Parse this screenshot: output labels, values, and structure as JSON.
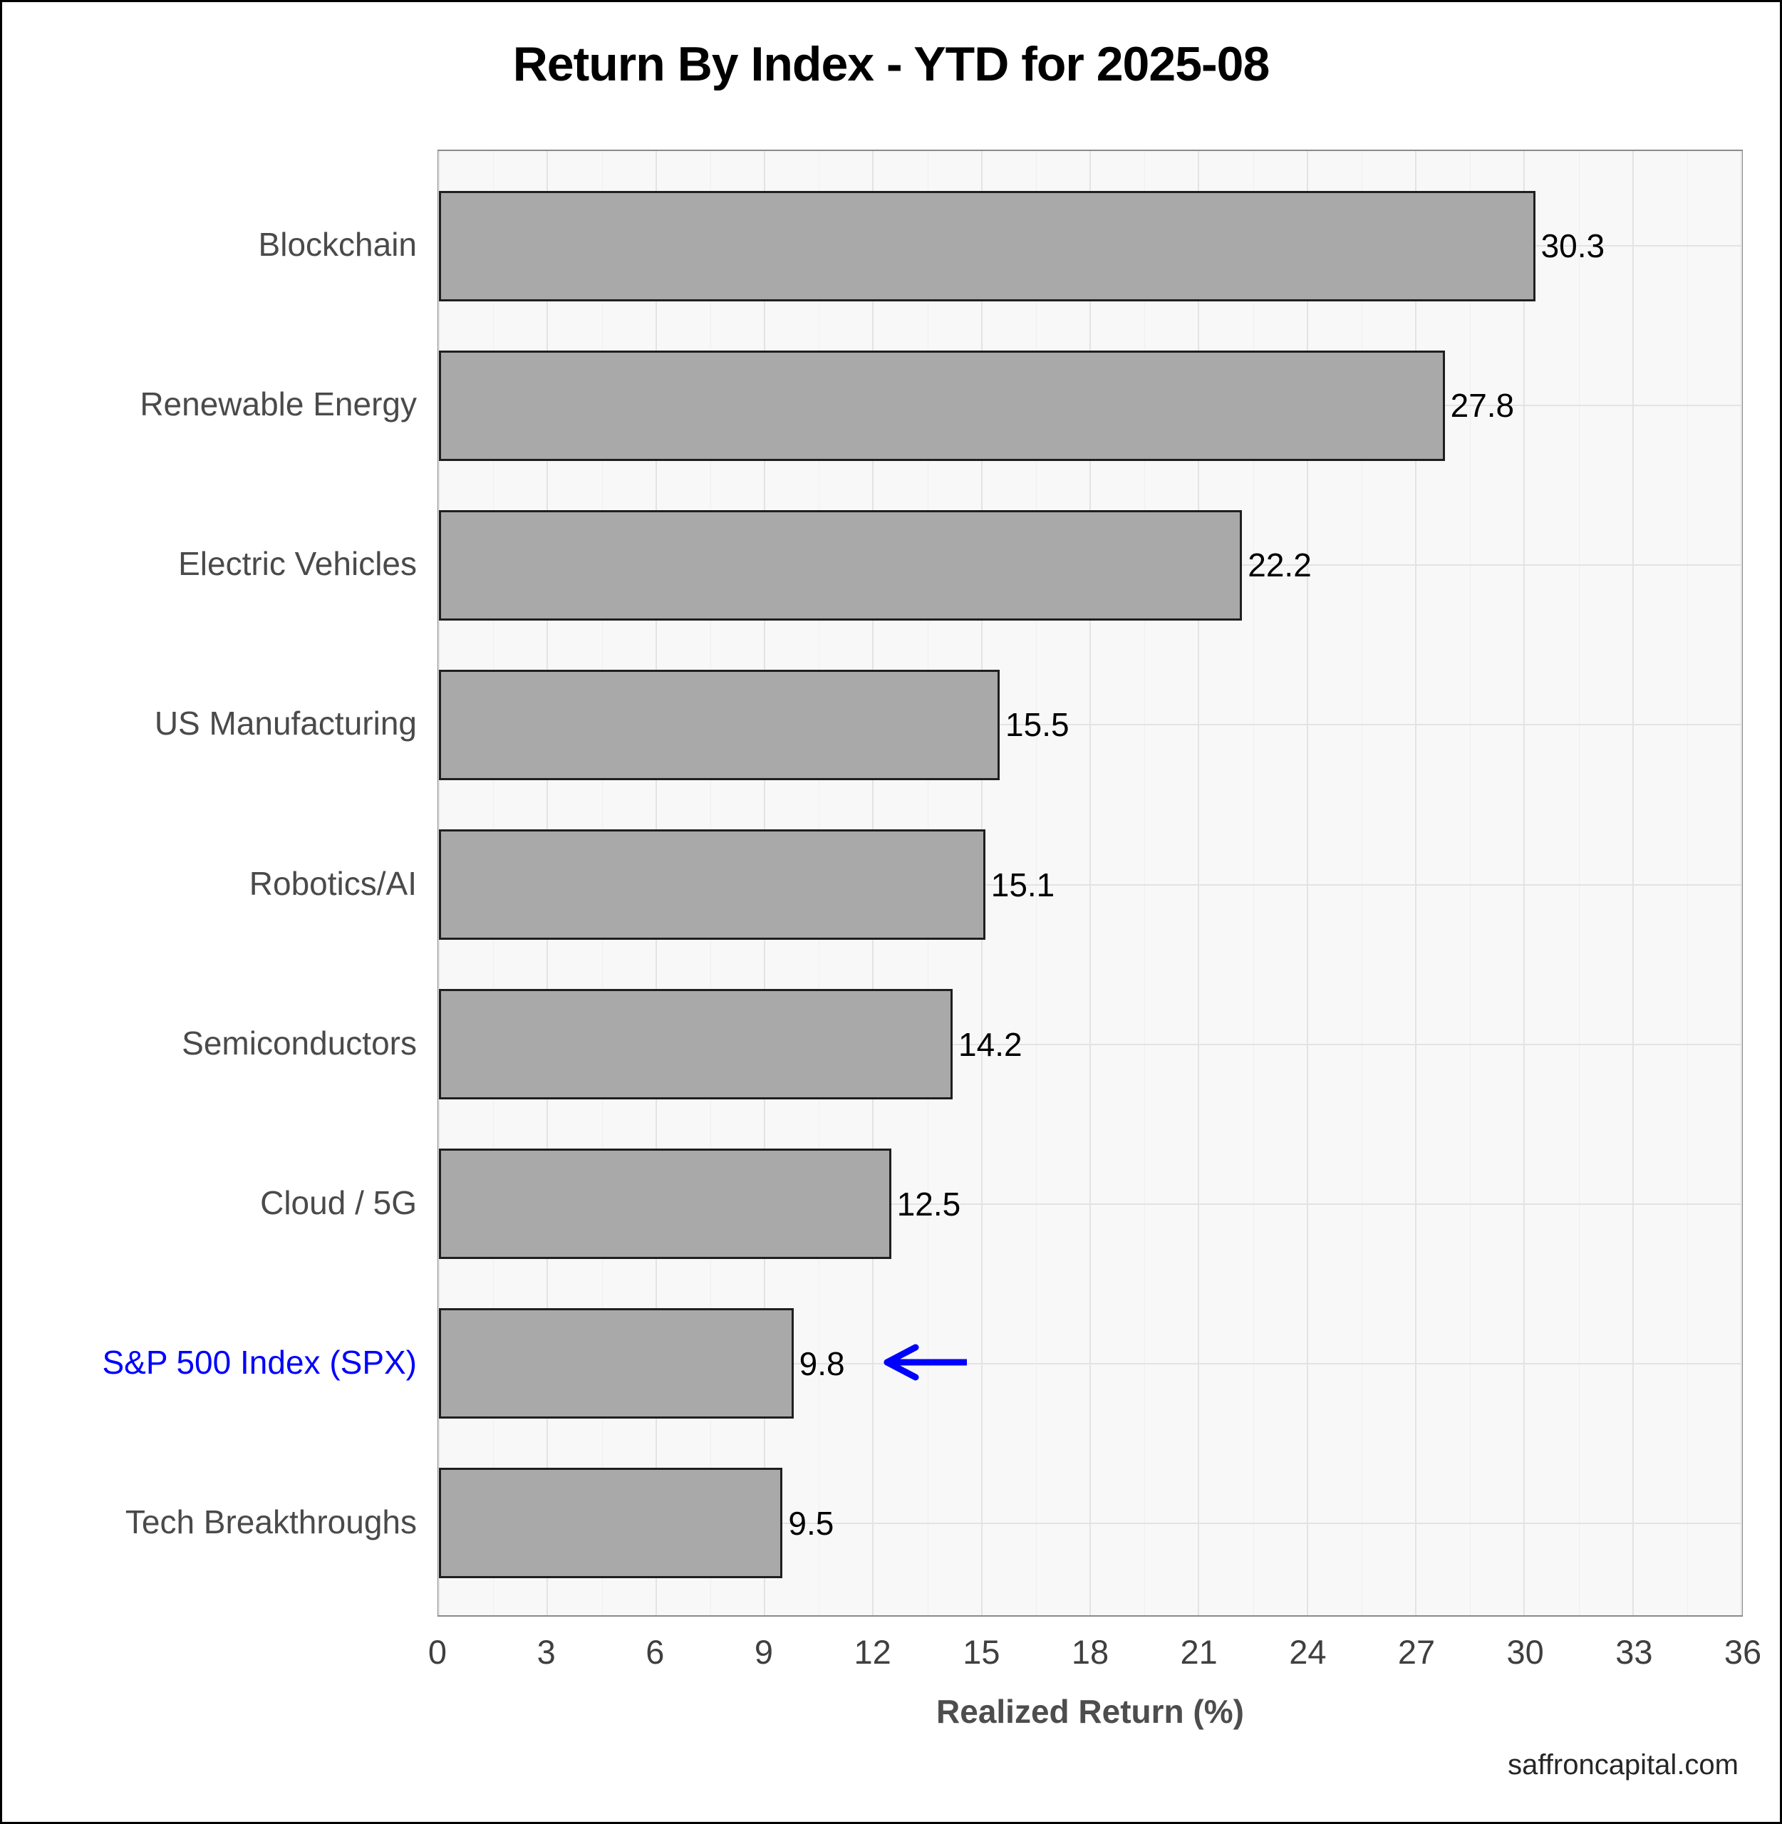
{
  "title": "Return By Index - YTD for 2025-08",
  "watermark": "saffroncapital.com",
  "chart_data": {
    "type": "bar",
    "orientation": "horizontal",
    "title": "Return By Index - YTD for 2025-08",
    "xlabel": "Realized Return (%)",
    "ylabel": "",
    "xlim": [
      0,
      36
    ],
    "xticks": [
      0,
      3,
      6,
      9,
      12,
      15,
      18,
      21,
      24,
      27,
      30,
      33,
      36
    ],
    "minor_xticks": [
      1.5,
      4.5,
      7.5,
      10.5,
      13.5,
      16.5,
      19.5,
      22.5,
      25.5,
      28.5,
      31.5,
      34.5
    ],
    "grid": true,
    "legend": "none",
    "categories": [
      "Blockchain",
      "Renewable Energy",
      "Electric Vehicles",
      "US Manufacturing",
      "Robotics/AI",
      "Semiconductors",
      "Cloud / 5G",
      "S&P 500 Index (SPX)",
      "Tech Breakthroughs"
    ],
    "values": [
      30.3,
      27.8,
      22.2,
      15.5,
      15.1,
      14.2,
      12.5,
      9.8,
      9.5
    ],
    "value_labels": [
      "30.3",
      "27.8",
      "22.2",
      "15.5",
      "15.1",
      "14.2",
      "12.5",
      "9.8",
      "9.5"
    ],
    "highlight": {
      "category": "S&P 500 Index (SPX)",
      "color": "#0000ff",
      "annotation": "left-pointing-arrow"
    },
    "colors": {
      "bar_fill": "#a9a9a9",
      "bar_border": "#1f1f1f",
      "plot_background": "#f8f8f8",
      "gridline": "#e3e3e3",
      "highlight_blue": "#0000ff"
    }
  }
}
